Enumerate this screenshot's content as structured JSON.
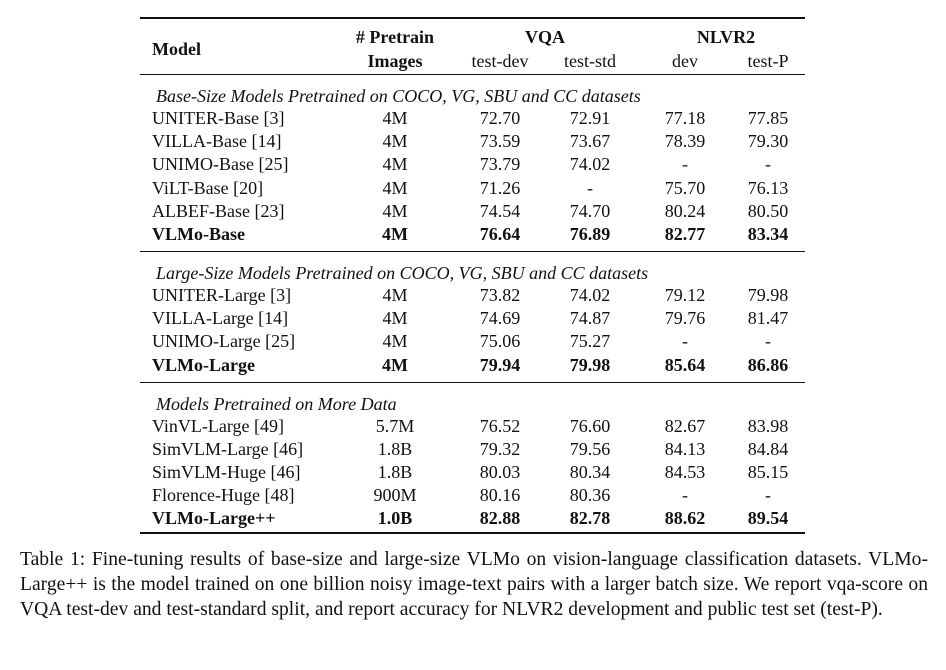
{
  "table": {
    "header": {
      "model": "Model",
      "pretrain": [
        "# Pretrain",
        "Images"
      ],
      "vqa": "VQA",
      "nlvr2": "NLVR2",
      "subcolumns": [
        "test-dev",
        "test-std",
        "dev",
        "test-P"
      ]
    },
    "sections": [
      {
        "title": "Base-Size Models Pretrained on COCO, VG, SBU and CC datasets",
        "rows": [
          [
            "UNITER-Base [3]",
            "4M",
            "72.70",
            "72.91",
            "77.18",
            "77.85"
          ],
          [
            "VILLA-Base [14]",
            "4M",
            "73.59",
            "73.67",
            "78.39",
            "79.30"
          ],
          [
            "UNIMO-Base [25]",
            "4M",
            "73.79",
            "74.02",
            "-",
            "-"
          ],
          [
            "ViLT-Base [20]",
            "4M",
            "71.26",
            "-",
            "75.70",
            "76.13"
          ],
          [
            "ALBEF-Base [23]",
            "4M",
            "74.54",
            "74.70",
            "80.24",
            "80.50"
          ],
          [
            "VLMo-Base",
            "4M",
            "76.64",
            "76.89",
            "82.77",
            "83.34"
          ]
        ]
      },
      {
        "title": "Large-Size Models Pretrained on COCO, VG, SBU and CC datasets",
        "rows": [
          [
            "UNITER-Large [3]",
            "4M",
            "73.82",
            "74.02",
            "79.12",
            "79.98"
          ],
          [
            "VILLA-Large [14]",
            "4M",
            "74.69",
            "74.87",
            "79.76",
            "81.47"
          ],
          [
            "UNIMO-Large [25]",
            "4M",
            "75.06",
            "75.27",
            "-",
            "-"
          ],
          [
            "VLMo-Large",
            "4M",
            "79.94",
            "79.98",
            "85.64",
            "86.86"
          ]
        ]
      },
      {
        "title": "Models Pretrained on More Data",
        "rows": [
          [
            "VinVL-Large [49]",
            "5.7M",
            "76.52",
            "76.60",
            "82.67",
            "83.98"
          ],
          [
            "SimVLM-Large [46]",
            "1.8B",
            "79.32",
            "79.56",
            "84.13",
            "84.84"
          ],
          [
            "SimVLM-Huge [46]",
            "1.8B",
            "80.03",
            "80.34",
            "84.53",
            "85.15"
          ],
          [
            "Florence-Huge [48]",
            "900M",
            "80.16",
            "80.36",
            "-",
            "-"
          ],
          [
            "VLMo-Large++",
            "1.0B",
            "82.88",
            "82.78",
            "88.62",
            "89.54"
          ]
        ]
      }
    ]
  },
  "caption": "Table 1: Fine-tuning results of base-size and large-size VLMo on vision-language classification datasets. VLMo-Large++ is the model trained on one billion noisy image-text pairs with a larger batch size. We report vqa-score on VQA test-dev and test-standard split, and report accuracy for NLVR2 development and public test set (test-P)."
}
